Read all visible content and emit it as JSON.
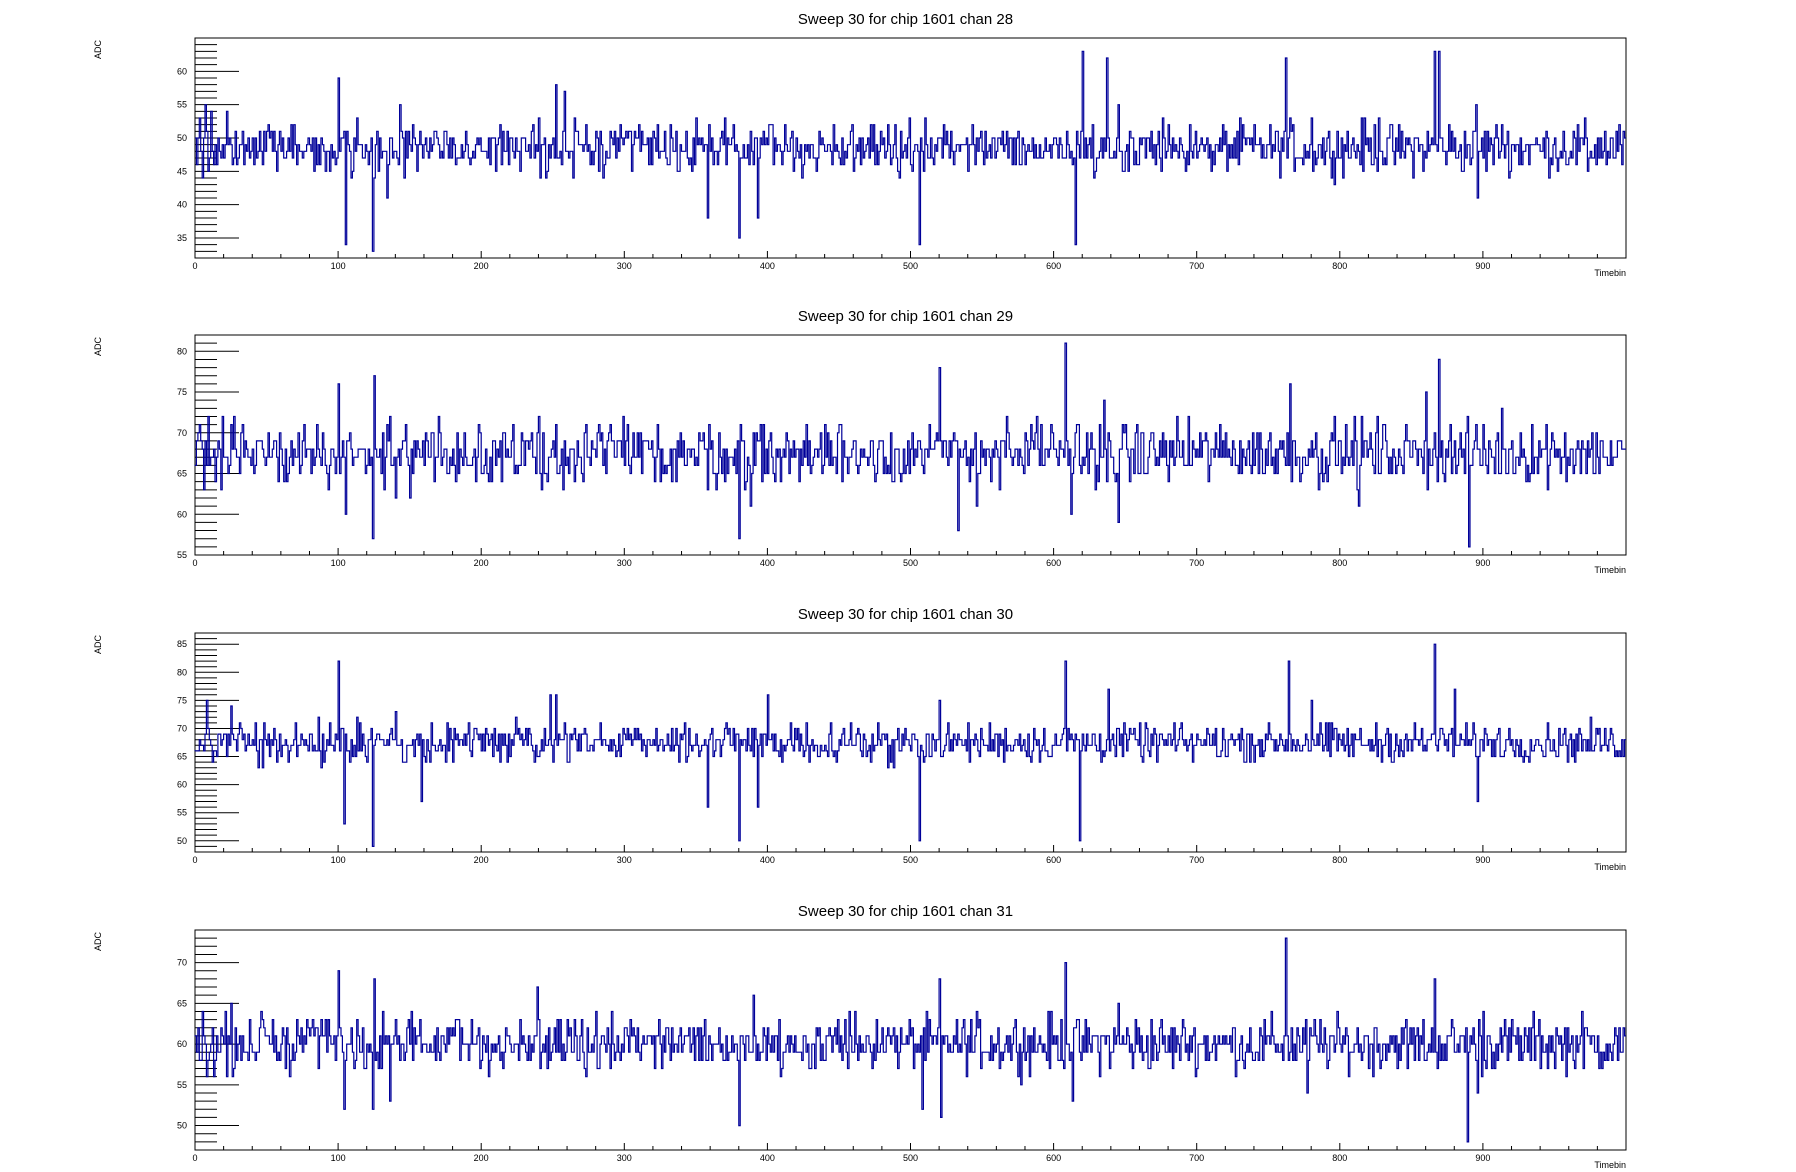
{
  "chart_data": [
    {
      "type": "line",
      "title": "Sweep 30 for chip 1601 chan 28",
      "xlabel": "Timebin",
      "ylabel": "ADC",
      "xlim": [
        0,
        1000
      ],
      "ylim": [
        32,
        65
      ],
      "x_ticks": [
        0,
        100,
        200,
        300,
        400,
        500,
        600,
        700,
        800,
        900
      ],
      "y_ticks": [
        35,
        40,
        45,
        50,
        55,
        60
      ],
      "series": [
        {
          "color": "#000099",
          "baseline": 48.5,
          "amplitude": 2.5,
          "seed": 28,
          "spikes": [
            [
              3,
              53
            ],
            [
              5,
              44
            ],
            [
              7,
              55
            ],
            [
              9,
              45
            ],
            [
              11,
              54
            ],
            [
              13,
              46
            ],
            [
              22,
              54
            ],
            [
              100,
              59
            ],
            [
              105,
              34
            ],
            [
              113,
              53
            ],
            [
              124,
              33
            ],
            [
              134,
              41
            ],
            [
              143,
              55
            ],
            [
              247,
              49
            ],
            [
              252,
              58
            ],
            [
              258,
              57
            ],
            [
              264,
              44
            ],
            [
              350,
              53
            ],
            [
              358,
              38
            ],
            [
              380,
              35
            ],
            [
              393,
              38
            ],
            [
              477,
              46
            ],
            [
              506,
              34
            ],
            [
              620,
              63
            ],
            [
              615,
              34
            ],
            [
              637,
              62
            ],
            [
              645,
              55
            ],
            [
              712,
              46
            ],
            [
              762,
              62
            ],
            [
              780,
              53
            ],
            [
              827,
              53
            ],
            [
              866,
              63
            ],
            [
              869,
              63
            ],
            [
              895,
              55
            ],
            [
              896,
              41
            ],
            [
              913,
              52
            ],
            [
              973,
              45
            ]
          ]
        }
      ]
    },
    {
      "type": "line",
      "title": "Sweep 30 for chip 1601 chan 29",
      "xlabel": "Timebin",
      "ylabel": "ADC",
      "xlim": [
        0,
        1000
      ],
      "ylim": [
        55,
        82
      ],
      "x_ticks": [
        0,
        100,
        200,
        300,
        400,
        500,
        600,
        700,
        800,
        900
      ],
      "y_ticks": [
        55,
        60,
        65,
        70,
        75,
        80
      ],
      "series": [
        {
          "color": "#000099",
          "baseline": 67.5,
          "amplitude": 2.5,
          "seed": 29,
          "spikes": [
            [
              3,
              71
            ],
            [
              6,
              63
            ],
            [
              9,
              72
            ],
            [
              14,
              64
            ],
            [
              27,
              72
            ],
            [
              100,
              76
            ],
            [
              105,
              60
            ],
            [
              124,
              57
            ],
            [
              125,
              77
            ],
            [
              140,
              62
            ],
            [
              150,
              62
            ],
            [
              358,
              63
            ],
            [
              380,
              57
            ],
            [
              388,
              61
            ],
            [
              520,
              78
            ],
            [
              533,
              58
            ],
            [
              546,
              61
            ],
            [
              608,
              81
            ],
            [
              612,
              60
            ],
            [
              635,
              74
            ],
            [
              645,
              59
            ],
            [
              765,
              76
            ],
            [
              813,
              61
            ],
            [
              860,
              75
            ],
            [
              869,
              79
            ],
            [
              890,
              56
            ],
            [
              900,
              71
            ]
          ]
        }
      ]
    },
    {
      "type": "line",
      "title": "Sweep 30 for chip 1601 chan 30",
      "xlabel": "Timebin",
      "ylabel": "ADC",
      "xlim": [
        0,
        1000
      ],
      "ylim": [
        48,
        87
      ],
      "x_ticks": [
        0,
        100,
        200,
        300,
        400,
        500,
        600,
        700,
        800,
        900
      ],
      "y_ticks": [
        50,
        55,
        60,
        65,
        70,
        75,
        80,
        85
      ],
      "series": [
        {
          "color": "#000099",
          "baseline": 67.5,
          "amplitude": 2.2,
          "seed": 30,
          "spikes": [
            [
              8,
              75
            ],
            [
              12,
              64
            ],
            [
              25,
              74
            ],
            [
              100,
              82
            ],
            [
              104,
              53
            ],
            [
              113,
              72
            ],
            [
              124,
              49
            ],
            [
              140,
              73
            ],
            [
              158,
              57
            ],
            [
              248,
              76
            ],
            [
              252,
              76
            ],
            [
              358,
              56
            ],
            [
              380,
              50
            ],
            [
              393,
              56
            ],
            [
              400,
              76
            ],
            [
              506,
              50
            ],
            [
              520,
              75
            ],
            [
              608,
              82
            ],
            [
              618,
              50
            ],
            [
              638,
              77
            ],
            [
              764,
              82
            ],
            [
              780,
              75
            ],
            [
              866,
              85
            ],
            [
              880,
              77
            ],
            [
              896,
              57
            ]
          ]
        }
      ]
    },
    {
      "type": "line",
      "title": "Sweep 30 for chip 1601 chan 31",
      "xlabel": "Timebin",
      "ylabel": "ADC",
      "xlim": [
        0,
        1000
      ],
      "ylim": [
        47,
        74
      ],
      "x_ticks": [
        0,
        100,
        200,
        300,
        400,
        500,
        600,
        700,
        800,
        900
      ],
      "y_ticks": [
        50,
        55,
        60,
        65,
        70
      ],
      "series": [
        {
          "color": "#000099",
          "baseline": 60,
          "amplitude": 2.2,
          "seed": 31,
          "spikes": [
            [
              5,
              64
            ],
            [
              13,
              56
            ],
            [
              25,
              65
            ],
            [
              100,
              69
            ],
            [
              104,
              52
            ],
            [
              124,
              52
            ],
            [
              125,
              68
            ],
            [
              136,
              53
            ],
            [
              239,
              67
            ],
            [
              380,
              50
            ],
            [
              390,
              66
            ],
            [
              508,
              52
            ],
            [
              520,
              68
            ],
            [
              521,
              51
            ],
            [
              608,
              70
            ],
            [
              613,
              53
            ],
            [
              645,
              65
            ],
            [
              762,
              73
            ],
            [
              777,
              54
            ],
            [
              866,
              68
            ],
            [
              889,
              48
            ],
            [
              896,
              54
            ],
            [
              900,
              64
            ]
          ]
        }
      ]
    }
  ]
}
